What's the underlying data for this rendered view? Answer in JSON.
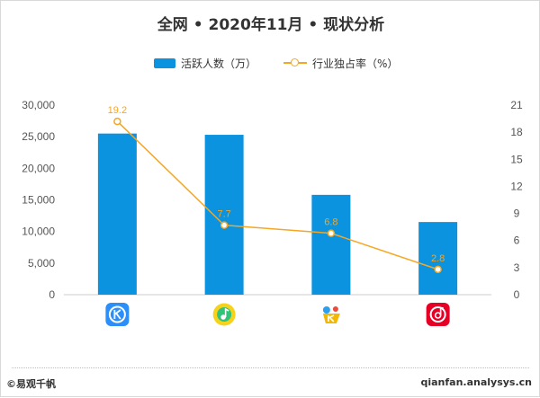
{
  "title": "全网 • 2020年11月 • 现状分析",
  "chart_data": {
    "type": "bar",
    "categories": [
      "酷狗音乐",
      "QQ音乐",
      "酷我音乐",
      "网易云音乐"
    ],
    "category_icons": [
      "kugou-app-icon",
      "qq-music-app-icon",
      "kuwo-music-app-icon",
      "netease-cloud-music-app-icon"
    ],
    "icon_colors": [
      "#2c8ef8",
      "#31c27c",
      "#f5b800",
      "#e60026"
    ],
    "series": [
      {
        "name": "活跃人数（万）",
        "type": "bar",
        "axis": "left",
        "color": "#0b93e0",
        "values": [
          25500,
          25300,
          15800,
          11500
        ]
      },
      {
        "name": "行业独占率（%）",
        "type": "line",
        "axis": "right",
        "color": "#f5a623",
        "values": [
          19.2,
          7.7,
          6.8,
          2.8
        ],
        "labels": [
          "19.2",
          "7.7",
          "6.8",
          "2.8"
        ]
      }
    ],
    "y_left": {
      "min": 0,
      "max": 30000,
      "ticks": [
        "0",
        "5,000",
        "10,000",
        "15,000",
        "20,000",
        "25,000",
        "30,000"
      ]
    },
    "y_right": {
      "min": 0,
      "max": 21,
      "ticks": [
        "0",
        "3",
        "6",
        "9",
        "12",
        "15",
        "18",
        "21"
      ]
    },
    "legend_position": "top-center",
    "grid": false
  },
  "footer": {
    "source": "©易观千帆",
    "url": "qianfan.analysys.cn"
  }
}
